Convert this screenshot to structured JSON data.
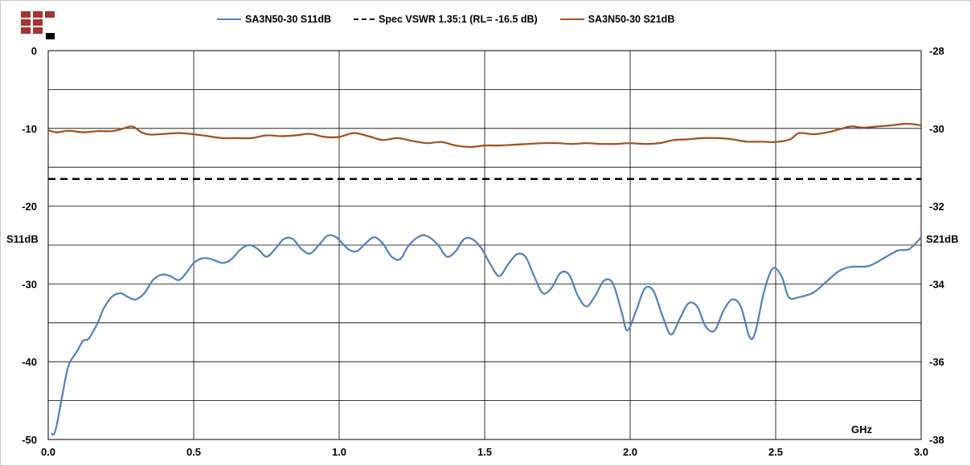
{
  "chart_data": {
    "type": "line",
    "title": "",
    "xlabel": "GHz",
    "ylabel_left": "S11dB",
    "ylabel_right": "S21dB",
    "xlim": [
      0.0,
      3.0
    ],
    "ylim_left": [
      -50,
      0
    ],
    "ylim_right": [
      -38,
      -28
    ],
    "x_ticks": [
      "0.0",
      "0.5",
      "1.0",
      "1.5",
      "2.0",
      "2.5",
      "3.0"
    ],
    "y_left_ticks": [
      "0",
      "-10",
      "-20",
      "-30",
      "-40",
      "-50"
    ],
    "y_right_ticks": [
      "-28",
      "-30",
      "-32",
      "-34",
      "-36",
      "-38"
    ],
    "grid": true,
    "legend_position": "top",
    "series": [
      {
        "name": "SA3N50-30 S11dB",
        "axis": "left",
        "color": "#4f81bd",
        "style": "solid",
        "points": [
          [
            0.01,
            -49.2
          ],
          [
            0.02,
            -49.3
          ],
          [
            0.03,
            -48
          ],
          [
            0.05,
            -44
          ],
          [
            0.07,
            -40.5
          ],
          [
            0.1,
            -38.6
          ],
          [
            0.12,
            -37.3
          ],
          [
            0.14,
            -37
          ],
          [
            0.17,
            -35
          ],
          [
            0.19,
            -33.2
          ],
          [
            0.22,
            -31.6
          ],
          [
            0.25,
            -31.2
          ],
          [
            0.27,
            -31.6
          ],
          [
            0.3,
            -32
          ],
          [
            0.33,
            -31.2
          ],
          [
            0.36,
            -29.5
          ],
          [
            0.39,
            -28.8
          ],
          [
            0.42,
            -29
          ],
          [
            0.45,
            -29.5
          ],
          [
            0.48,
            -28.3
          ],
          [
            0.5,
            -27.3
          ],
          [
            0.53,
            -26.7
          ],
          [
            0.56,
            -26.8
          ],
          [
            0.6,
            -27.3
          ],
          [
            0.63,
            -26.8
          ],
          [
            0.66,
            -25.6
          ],
          [
            0.69,
            -25
          ],
          [
            0.72,
            -25.5
          ],
          [
            0.75,
            -26.5
          ],
          [
            0.78,
            -25.5
          ],
          [
            0.81,
            -24.2
          ],
          [
            0.84,
            -24.2
          ],
          [
            0.87,
            -25.5
          ],
          [
            0.9,
            -26.1
          ],
          [
            0.93,
            -25
          ],
          [
            0.96,
            -23.8
          ],
          [
            0.99,
            -24
          ],
          [
            1.03,
            -25.5
          ],
          [
            1.06,
            -25.8
          ],
          [
            1.09,
            -24.8
          ],
          [
            1.12,
            -24
          ],
          [
            1.15,
            -24.8
          ],
          [
            1.18,
            -26.5
          ],
          [
            1.21,
            -26.8
          ],
          [
            1.24,
            -25
          ],
          [
            1.28,
            -23.8
          ],
          [
            1.31,
            -24
          ],
          [
            1.34,
            -25
          ],
          [
            1.37,
            -26.5
          ],
          [
            1.4,
            -25.8
          ],
          [
            1.43,
            -24.2
          ],
          [
            1.46,
            -24.3
          ],
          [
            1.49,
            -25.5
          ],
          [
            1.52,
            -27.5
          ],
          [
            1.55,
            -29
          ],
          [
            1.58,
            -27.5
          ],
          [
            1.61,
            -26.2
          ],
          [
            1.64,
            -26.5
          ],
          [
            1.67,
            -29
          ],
          [
            1.7,
            -31.2
          ],
          [
            1.73,
            -30.5
          ],
          [
            1.76,
            -28.6
          ],
          [
            1.79,
            -28.8
          ],
          [
            1.82,
            -31.5
          ],
          [
            1.85,
            -32.9
          ],
          [
            1.88,
            -31.5
          ],
          [
            1.91,
            -29.6
          ],
          [
            1.94,
            -29.9
          ],
          [
            1.97,
            -33.5
          ],
          [
            1.99,
            -36
          ],
          [
            2.02,
            -33.5
          ],
          [
            2.05,
            -30.6
          ],
          [
            2.08,
            -30.9
          ],
          [
            2.11,
            -34
          ],
          [
            2.14,
            -36.5
          ],
          [
            2.17,
            -34.5
          ],
          [
            2.2,
            -32.5
          ],
          [
            2.23,
            -32.9
          ],
          [
            2.26,
            -35.5
          ],
          [
            2.29,
            -36
          ],
          [
            2.32,
            -33.5
          ],
          [
            2.35,
            -32
          ],
          [
            2.38,
            -32.9
          ],
          [
            2.41,
            -36.8
          ],
          [
            2.43,
            -36.2
          ],
          [
            2.46,
            -31
          ],
          [
            2.49,
            -28
          ],
          [
            2.52,
            -29
          ],
          [
            2.545,
            -31.7
          ],
          [
            2.58,
            -31.7
          ],
          [
            2.63,
            -31.1
          ],
          [
            2.68,
            -29.5
          ],
          [
            2.72,
            -28.3
          ],
          [
            2.76,
            -27.8
          ],
          [
            2.82,
            -27.7
          ],
          [
            2.88,
            -26.5
          ],
          [
            2.92,
            -25.7
          ],
          [
            2.96,
            -25.5
          ],
          [
            3.0,
            -24
          ]
        ]
      },
      {
        "name": "Spec VSWR 1.35:1 (RL= -16.5 dB)",
        "axis": "left",
        "color": "#000000",
        "style": "dashed",
        "points": [
          [
            0.0,
            -16.5
          ],
          [
            3.0,
            -16.5
          ]
        ]
      },
      {
        "name": "SA3N50-30 S21dB",
        "axis": "right",
        "color": "#a0501a",
        "style": "solid",
        "points": [
          [
            0.0,
            -30.05
          ],
          [
            0.03,
            -30.1
          ],
          [
            0.07,
            -30.06
          ],
          [
            0.12,
            -30.1
          ],
          [
            0.17,
            -30.07
          ],
          [
            0.22,
            -30.07
          ],
          [
            0.26,
            -30.0
          ],
          [
            0.29,
            -29.95
          ],
          [
            0.32,
            -30.1
          ],
          [
            0.35,
            -30.16
          ],
          [
            0.4,
            -30.14
          ],
          [
            0.45,
            -30.12
          ],
          [
            0.5,
            -30.15
          ],
          [
            0.55,
            -30.2
          ],
          [
            0.6,
            -30.25
          ],
          [
            0.65,
            -30.25
          ],
          [
            0.7,
            -30.25
          ],
          [
            0.75,
            -30.18
          ],
          [
            0.8,
            -30.2
          ],
          [
            0.85,
            -30.18
          ],
          [
            0.9,
            -30.14
          ],
          [
            0.95,
            -30.22
          ],
          [
            1.0,
            -30.22
          ],
          [
            1.05,
            -30.12
          ],
          [
            1.1,
            -30.2
          ],
          [
            1.15,
            -30.3
          ],
          [
            1.2,
            -30.25
          ],
          [
            1.25,
            -30.32
          ],
          [
            1.3,
            -30.38
          ],
          [
            1.35,
            -30.35
          ],
          [
            1.4,
            -30.44
          ],
          [
            1.45,
            -30.48
          ],
          [
            1.5,
            -30.44
          ],
          [
            1.55,
            -30.44
          ],
          [
            1.6,
            -30.42
          ],
          [
            1.65,
            -30.4
          ],
          [
            1.7,
            -30.38
          ],
          [
            1.75,
            -30.38
          ],
          [
            1.8,
            -30.4
          ],
          [
            1.85,
            -30.38
          ],
          [
            1.9,
            -30.4
          ],
          [
            1.95,
            -30.4
          ],
          [
            2.0,
            -30.38
          ],
          [
            2.05,
            -30.4
          ],
          [
            2.1,
            -30.38
          ],
          [
            2.15,
            -30.3
          ],
          [
            2.2,
            -30.28
          ],
          [
            2.25,
            -30.25
          ],
          [
            2.3,
            -30.25
          ],
          [
            2.35,
            -30.28
          ],
          [
            2.4,
            -30.34
          ],
          [
            2.45,
            -30.34
          ],
          [
            2.5,
            -30.35
          ],
          [
            2.55,
            -30.28
          ],
          [
            2.58,
            -30.12
          ],
          [
            2.63,
            -30.15
          ],
          [
            2.68,
            -30.1
          ],
          [
            2.72,
            -30.02
          ],
          [
            2.76,
            -29.95
          ],
          [
            2.8,
            -29.98
          ],
          [
            2.85,
            -29.95
          ],
          [
            2.9,
            -29.92
          ],
          [
            2.95,
            -29.88
          ],
          [
            3.0,
            -29.92
          ]
        ]
      }
    ]
  },
  "logo": {
    "colors": [
      "#a83232",
      "#000000"
    ]
  }
}
